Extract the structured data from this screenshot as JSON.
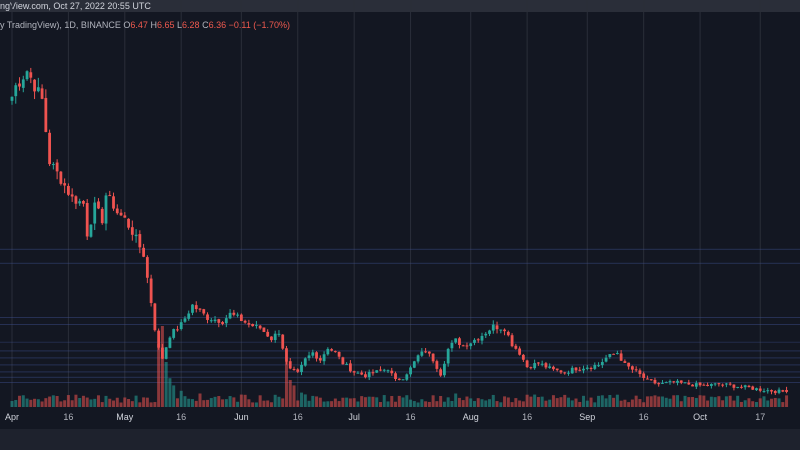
{
  "header": {
    "watermark_text": "ngView.com, Oct 27, 2022 20:55 UTC",
    "symbol_info": "y TradingView), 1D, BINANCE",
    "o_label": "O",
    "o_value": "6.47",
    "h_label": "H",
    "h_value": "6.65",
    "l_label": "L",
    "l_value": "6.28",
    "c_label": "C",
    "c_value": "6.36",
    "change": "−0.11 (−1.70%)"
  },
  "colors": {
    "up": "#26a69a",
    "down": "#ef5350",
    "grid": "#2a2e39",
    "level": "#3d4f8c",
    "background": "#131722"
  },
  "chart_data": {
    "type": "candlestick",
    "title": "1D, BINANCE",
    "x_tick_labels": [
      "Apr",
      "16",
      "May",
      "16",
      "Jun",
      "16",
      "Jul",
      "16",
      "Aug",
      "16",
      "Sep",
      "16",
      "Oct",
      "17"
    ],
    "x_tick_day_index": [
      0,
      15,
      30,
      45,
      61,
      76,
      91,
      106,
      122,
      137,
      153,
      168,
      183,
      199
    ],
    "ylim": [
      5.5,
      27
    ],
    "horizontal_levels": [
      14.5,
      13.7,
      10.6,
      10.2,
      9.2,
      8.7,
      8.3,
      7.9,
      7.5,
      7.2,
      6.9
    ],
    "keypoints": [
      [
        0,
        23.2
      ],
      [
        1,
        23.8
      ],
      [
        4,
        24.7
      ],
      [
        8,
        23.0
      ],
      [
        10,
        19.5
      ],
      [
        13,
        18.5
      ],
      [
        16,
        17.4
      ],
      [
        19,
        17.1
      ],
      [
        20,
        15.4
      ],
      [
        22,
        16.9
      ],
      [
        24,
        16.2
      ],
      [
        25,
        17.6
      ],
      [
        27,
        17.0
      ],
      [
        28,
        16.6
      ],
      [
        30,
        16.2
      ],
      [
        32,
        15.5
      ],
      [
        35,
        14.2
      ],
      [
        37,
        11.5
      ],
      [
        38,
        10.0
      ],
      [
        39,
        8.8
      ],
      [
        40,
        8.3
      ],
      [
        42,
        9.6
      ],
      [
        45,
        10.2
      ],
      [
        48,
        11.3
      ],
      [
        52,
        10.6
      ],
      [
        56,
        10.4
      ],
      [
        58,
        10.8
      ],
      [
        60,
        10.6
      ],
      [
        63,
        10.2
      ],
      [
        66,
        10.0
      ],
      [
        69,
        9.4
      ],
      [
        71,
        9.8
      ],
      [
        73,
        8.0
      ],
      [
        74,
        7.6
      ],
      [
        76,
        7.4
      ],
      [
        78,
        8.2
      ],
      [
        80,
        8.6
      ],
      [
        82,
        8.2
      ],
      [
        84,
        8.9
      ],
      [
        86,
        8.6
      ],
      [
        88,
        8.0
      ],
      [
        91,
        7.5
      ],
      [
        94,
        7.3
      ],
      [
        97,
        7.5
      ],
      [
        100,
        7.7
      ],
      [
        102,
        7.0
      ],
      [
        104,
        7.2
      ],
      [
        106,
        7.7
      ],
      [
        108,
        8.4
      ],
      [
        110,
        8.7
      ],
      [
        112,
        8.2
      ],
      [
        114,
        7.4
      ],
      [
        116,
        8.8
      ],
      [
        118,
        9.3
      ],
      [
        120,
        9.0
      ],
      [
        122,
        9.2
      ],
      [
        125,
        9.6
      ],
      [
        128,
        10.1
      ],
      [
        131,
        10.0
      ],
      [
        133,
        9.1
      ],
      [
        135,
        8.6
      ],
      [
        137,
        7.8
      ],
      [
        140,
        8.0
      ],
      [
        144,
        7.6
      ],
      [
        147,
        7.5
      ],
      [
        150,
        7.7
      ],
      [
        153,
        7.8
      ],
      [
        156,
        7.9
      ],
      [
        158,
        8.3
      ],
      [
        161,
        8.6
      ],
      [
        163,
        7.9
      ],
      [
        166,
        7.5
      ],
      [
        169,
        7.0
      ],
      [
        172,
        6.8
      ],
      [
        176,
        6.9
      ],
      [
        180,
        6.8
      ],
      [
        184,
        6.7
      ],
      [
        188,
        6.8
      ],
      [
        192,
        6.7
      ],
      [
        196,
        6.6
      ],
      [
        199,
        6.5
      ],
      [
        203,
        6.4
      ],
      [
        206,
        6.36
      ]
    ],
    "volume_spikes": [
      [
        39,
        7
      ],
      [
        40,
        9
      ],
      [
        41,
        5
      ],
      [
        42,
        3.2
      ],
      [
        43,
        2.4
      ],
      [
        45,
        1.8
      ],
      [
        50,
        1.5
      ],
      [
        66,
        1.3
      ],
      [
        73,
        5
      ],
      [
        74,
        3
      ],
      [
        75,
        2.4
      ],
      [
        77,
        1.6
      ],
      [
        78,
        1.4
      ],
      [
        112,
        1.3
      ],
      [
        118,
        1.5
      ],
      [
        176,
        1.3
      ],
      [
        180,
        1.1
      ]
    ],
    "last": {
      "open": 6.47,
      "high": 6.65,
      "low": 6.28,
      "close": 6.36,
      "change": -0.11,
      "change_pct": -1.7
    }
  }
}
